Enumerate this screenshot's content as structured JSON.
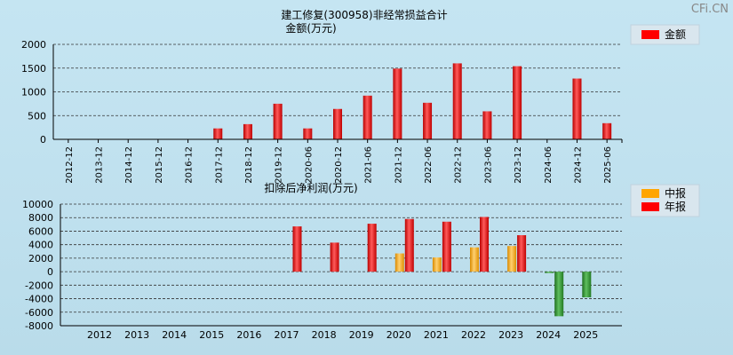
{
  "watermark": "CFi.CN",
  "chart_data": [
    {
      "type": "bar",
      "title": "建工修复(300958)非经常损益合计",
      "subtitle": "金额(万元)",
      "categories": [
        "2012-12",
        "2013-12",
        "2014-12",
        "2015-12",
        "2016-12",
        "2017-12",
        "2018-12",
        "2019-12",
        "2020-06",
        "2020-12",
        "2021-06",
        "2021-12",
        "2022-06",
        "2022-12",
        "2023-06",
        "2023-12",
        "2024-06",
        "2024-12",
        "2025-06"
      ],
      "series": [
        {
          "name": "金额",
          "color": "#ff0000",
          "values": [
            null,
            null,
            null,
            null,
            null,
            230,
            320,
            750,
            230,
            640,
            920,
            1490,
            770,
            1600,
            590,
            1540,
            null,
            1280,
            340
          ]
        }
      ],
      "yticks": [
        0,
        500,
        1000,
        1500,
        2000
      ],
      "ylim": [
        0,
        2000
      ],
      "legend": "top-right"
    },
    {
      "type": "bar",
      "title": "扣除后净利润(万元)",
      "categories": [
        "2012",
        "2013",
        "2014",
        "2015",
        "2016",
        "2017",
        "2018",
        "2019",
        "2020",
        "2021",
        "2022",
        "2023",
        "2024",
        "2025"
      ],
      "series": [
        {
          "name": "中报",
          "color": "#ffa500",
          "values": [
            null,
            null,
            null,
            null,
            null,
            null,
            null,
            null,
            2700,
            2100,
            3600,
            3800,
            -200,
            -3800
          ]
        },
        {
          "name": "年报",
          "color": "#ff0000",
          "values": [
            null,
            null,
            null,
            null,
            null,
            6700,
            4300,
            7100,
            7800,
            7400,
            8100,
            5400,
            -6600,
            null
          ]
        }
      ],
      "negative_color": "#2e8b2e",
      "yticks": [
        -8000,
        -6000,
        -4000,
        -2000,
        0,
        2000,
        4000,
        6000,
        8000,
        10000
      ],
      "ylim": [
        -8000,
        10000
      ],
      "legend": "top-right"
    }
  ]
}
